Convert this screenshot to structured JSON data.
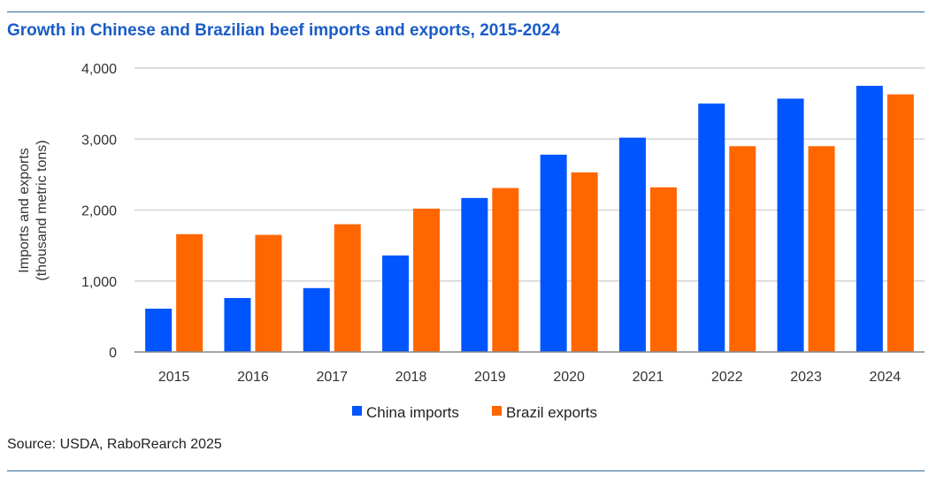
{
  "title": "Growth in Chinese and Brazilian beef imports and exports, 2015-2024",
  "source": "Source: USDA, RaboRearch 2025",
  "chart_data": {
    "type": "bar",
    "title": "Growth in Chinese and Brazilian beef imports and exports, 2015-2024",
    "xlabel": "",
    "ylabel": [
      "Imports and exports",
      "(thousand metric tons)"
    ],
    "ylim": [
      0,
      4000
    ],
    "yticks": [
      0,
      1000,
      2000,
      3000,
      4000
    ],
    "ytick_labels": [
      "0",
      "1,000",
      "2,000",
      "3,000",
      "4,000"
    ],
    "grid": true,
    "legend_position": "bottom",
    "categories": [
      "2015",
      "2016",
      "2017",
      "2018",
      "2019",
      "2020",
      "2021",
      "2022",
      "2023",
      "2024"
    ],
    "series": [
      {
        "name": "China imports",
        "color": "#0055ff",
        "values": [
          610,
          760,
          900,
          1360,
          2170,
          2780,
          3020,
          3500,
          3570,
          3750
        ]
      },
      {
        "name": "Brazil exports",
        "color": "#ff6600",
        "values": [
          1660,
          1650,
          1800,
          2020,
          2310,
          2530,
          2320,
          2900,
          2900,
          3630
        ]
      }
    ]
  }
}
